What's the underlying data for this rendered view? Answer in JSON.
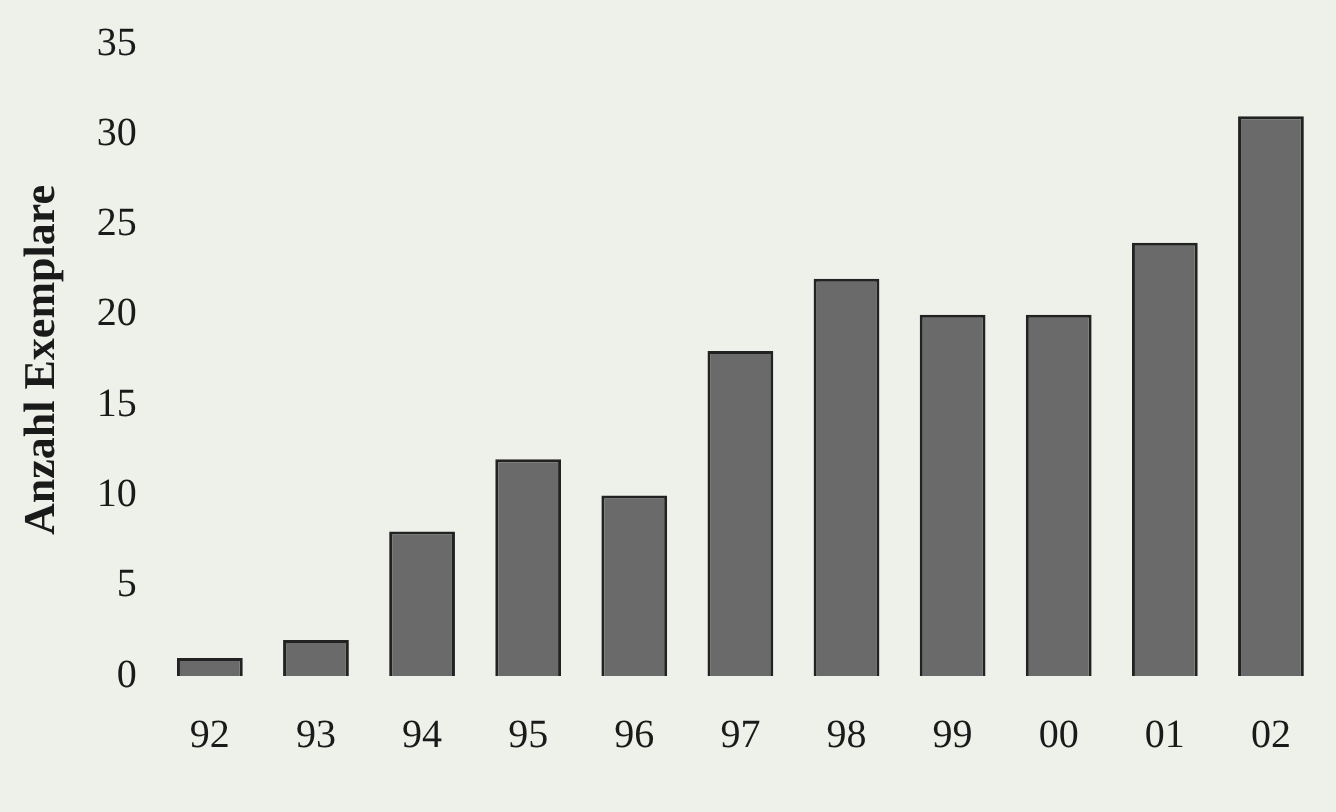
{
  "chart_data": {
    "type": "bar",
    "ylabel": "Anzahl Exemplare",
    "categories": [
      "92",
      "93",
      "94",
      "95",
      "96",
      "97",
      "98",
      "99",
      "00",
      "01",
      "02"
    ],
    "values": [
      1,
      2,
      8,
      12,
      10,
      18,
      22,
      20,
      20,
      24,
      31
    ],
    "color": "#6a6a6a",
    "ylim": [
      0,
      35
    ],
    "yticks": [
      0,
      5,
      10,
      15,
      20,
      25,
      30,
      35
    ],
    "grid": false,
    "legend": false
  }
}
